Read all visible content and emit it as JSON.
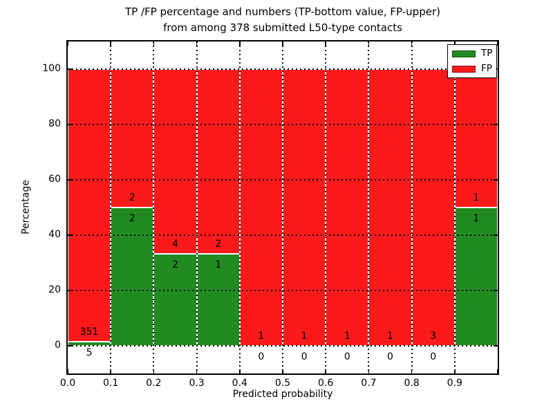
{
  "figure": {
    "title_line1": "TP /FP percentage and numbers (TP-bottom value, FP-upper)",
    "title_line2": "from among 378 submitted L50-type contacts"
  },
  "chart_data": {
    "type": "bar",
    "stacked": true,
    "title": "TP /FP percentage and numbers (TP-bottom value, FP-upper) from among 378 submitted L50-type contacts",
    "xlabel": "Predicted probability",
    "ylabel": "Percentage",
    "xlim": [
      0.0,
      1.0
    ],
    "ylim": [
      -10,
      110
    ],
    "x_tick_values": [
      0.0,
      0.1,
      0.2,
      0.3,
      0.4,
      0.5,
      0.6,
      0.7,
      0.8,
      0.9
    ],
    "x_tick_labels": [
      "0.0",
      "0.1",
      "0.2",
      "0.3",
      "0.4",
      "0.5",
      "0.6",
      "0.7",
      "0.8",
      "0.9"
    ],
    "y_tick_values": [
      0,
      20,
      40,
      60,
      80,
      100
    ],
    "y_tick_labels": [
      "0",
      "20",
      "40",
      "60",
      "80",
      "100"
    ],
    "grid": true,
    "grid_style": "dotted",
    "bin_width": 0.1,
    "total_contacts": 378,
    "colors": {
      "tp": "#218b21",
      "fp": "#fa1a1a",
      "bar_edge": "#ffffff",
      "text": "#000000"
    },
    "legend": {
      "position": "upper right",
      "entries": [
        {
          "label": "TP",
          "color": "#218b21"
        },
        {
          "label": "FP",
          "color": "#fa1a1a"
        }
      ]
    },
    "bins": [
      {
        "range": [
          0.0,
          0.1
        ],
        "tp": 5,
        "fp": 351,
        "tp_pct": 1.404,
        "fp_pct": 98.596
      },
      {
        "range": [
          0.1,
          0.2
        ],
        "tp": 2,
        "fp": 2,
        "tp_pct": 50.0,
        "fp_pct": 50.0
      },
      {
        "range": [
          0.2,
          0.3
        ],
        "tp": 2,
        "fp": 4,
        "tp_pct": 33.333,
        "fp_pct": 66.667
      },
      {
        "range": [
          0.3,
          0.4
        ],
        "tp": 1,
        "fp": 2,
        "tp_pct": 33.333,
        "fp_pct": 66.667
      },
      {
        "range": [
          0.4,
          0.5
        ],
        "tp": 0,
        "fp": 1,
        "tp_pct": 0.0,
        "fp_pct": 100.0
      },
      {
        "range": [
          0.5,
          0.6
        ],
        "tp": 0,
        "fp": 1,
        "tp_pct": 0.0,
        "fp_pct": 100.0
      },
      {
        "range": [
          0.6,
          0.7
        ],
        "tp": 0,
        "fp": 1,
        "tp_pct": 0.0,
        "fp_pct": 100.0
      },
      {
        "range": [
          0.7,
          0.8
        ],
        "tp": 0,
        "fp": 1,
        "tp_pct": 0.0,
        "fp_pct": 100.0
      },
      {
        "range": [
          0.8,
          0.9
        ],
        "tp": 0,
        "fp": 3,
        "tp_pct": 0.0,
        "fp_pct": 100.0
      },
      {
        "range": [
          0.9,
          1.0
        ],
        "tp": 1,
        "fp": 1,
        "tp_pct": 50.0,
        "fp_pct": 50.0
      }
    ]
  }
}
